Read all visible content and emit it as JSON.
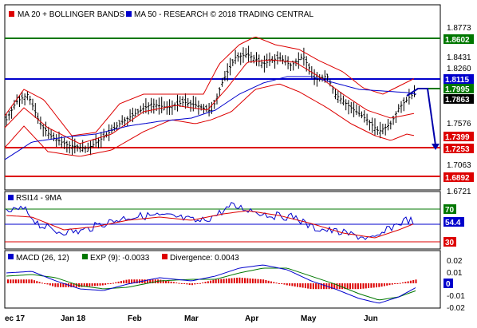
{
  "colors": {
    "ma20_bollinger": "#dd0000",
    "ma50": "#0000cc",
    "resistance": "#0000cc",
    "support": "#dd0000",
    "green_line": "#007700",
    "price_tag": "#000000",
    "rsi_line": "#0000cc",
    "rsi_ma": "#dd0000",
    "macd_line": "#0000cc",
    "exp_line": "#007700",
    "divergence": "#dd0000",
    "forecast": "#0000aa"
  },
  "legend": {
    "ma_label": "MA 20 + BOLLINGER BANDS",
    "ma50_label": "MA 50 - RESEARCH © 2018 TRADING CENTRAL"
  },
  "price_axis": {
    "ticks": [
      "1.8773",
      "1.8431",
      "1.8260",
      "1.7576",
      "1.7063",
      "1.6721"
    ],
    "levels": {
      "top_green": "1.8602",
      "resistance": "1.8115",
      "current": "1.7995",
      "last": "1.7863",
      "support_1": "1.7399",
      "support_2": "1.7253",
      "support_3": "1.6892"
    }
  },
  "rsi": {
    "label": "RSI14 - 9MA",
    "upper": "70",
    "lower": "30",
    "value": "54.4",
    "ylim": [
      0,
      100
    ]
  },
  "macd": {
    "label": "MACD (26, 12)",
    "exp_label": "EXP (9): -0.0033",
    "divergence_label": "Divergence: 0.0043",
    "ticks": [
      "0.02",
      "0.01",
      "0",
      "-0.01",
      "-0.02"
    ]
  },
  "x_axis": {
    "labels": [
      "ec 17",
      "Jan 18",
      "Feb",
      "Mar",
      "Apr",
      "May",
      "Jun"
    ]
  },
  "chart_data": {
    "type": "line",
    "price_range": [
      1.6721,
      1.8773
    ],
    "series": []
  }
}
